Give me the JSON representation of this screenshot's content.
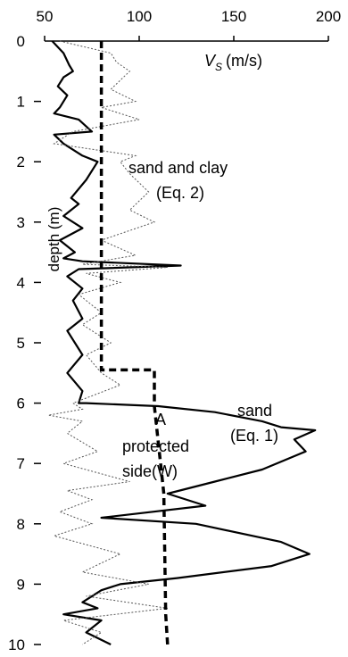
{
  "chart_data": {
    "type": "line",
    "xlabel": "V_S (m/s)",
    "xlabel_symbol": "V",
    "xlabel_subscript": "S",
    "xlabel_unit": "(m/s)",
    "ylabel": "depth (m)",
    "xlim": [
      50,
      200
    ],
    "ylim": [
      0,
      10
    ],
    "y_inverted": true,
    "x_axis_position": "top",
    "grid": false,
    "legend": "none",
    "xticks": [
      "50",
      "100",
      "150",
      "200"
    ],
    "xtick_values": [
      50,
      100,
      150,
      200
    ],
    "yticks": [
      "0",
      "1",
      "2",
      "3",
      "4",
      "5",
      "6",
      "7",
      "8",
      "9",
      "10"
    ],
    "ytick_values": [
      0,
      1,
      2,
      3,
      4,
      5,
      6,
      7,
      8,
      9,
      10
    ],
    "annotations": {
      "sand_and_clay_line1": "sand and clay",
      "sand_and_clay_line2": "(Eq. 2)",
      "sand_line1": "sand",
      "sand_line2": "(Eq. 1)",
      "point_A": "A",
      "protected_line1": "protected",
      "protected_line2": "side(W)"
    },
    "series": [
      {
        "style": "solid",
        "color": "#000000",
        "points": [
          [
            54,
            0.0
          ],
          [
            60,
            0.2
          ],
          [
            63,
            0.4
          ],
          [
            65,
            0.5
          ],
          [
            60,
            0.6
          ],
          [
            57,
            0.75
          ],
          [
            62,
            0.9
          ],
          [
            58,
            1.1
          ],
          [
            55,
            1.2
          ],
          [
            68,
            1.3
          ],
          [
            75,
            1.5
          ],
          [
            55,
            1.55
          ],
          [
            60,
            1.7
          ],
          [
            70,
            1.9
          ],
          [
            78,
            2.0
          ],
          [
            72,
            2.3
          ],
          [
            64,
            2.6
          ],
          [
            68,
            2.7
          ],
          [
            60,
            2.9
          ],
          [
            70,
            3.1
          ],
          [
            58,
            3.3
          ],
          [
            66,
            3.5
          ],
          [
            60,
            3.6
          ],
          [
            70,
            3.65
          ],
          [
            122,
            3.72
          ],
          [
            68,
            3.78
          ],
          [
            62,
            3.9
          ],
          [
            70,
            4.1
          ],
          [
            65,
            4.3
          ],
          [
            70,
            4.6
          ],
          [
            62,
            4.8
          ],
          [
            66,
            5.0
          ],
          [
            70,
            5.2
          ],
          [
            62,
            5.5
          ],
          [
            70,
            5.8
          ],
          [
            68,
            6.0
          ],
          [
            72,
            6.0
          ],
          [
            110,
            6.05
          ],
          [
            140,
            6.15
          ],
          [
            165,
            6.3
          ],
          [
            175,
            6.4
          ],
          [
            193,
            6.45
          ],
          [
            182,
            6.6
          ],
          [
            188,
            6.8
          ],
          [
            165,
            7.1
          ],
          [
            140,
            7.3
          ],
          [
            115,
            7.5
          ],
          [
            135,
            7.7
          ],
          [
            80,
            7.9
          ],
          [
            130,
            8.0
          ],
          [
            175,
            8.3
          ],
          [
            190,
            8.5
          ],
          [
            170,
            8.7
          ],
          [
            120,
            8.9
          ],
          [
            90,
            9.0
          ],
          [
            80,
            9.1
          ],
          [
            70,
            9.3
          ],
          [
            78,
            9.4
          ],
          [
            60,
            9.5
          ],
          [
            80,
            9.6
          ],
          [
            72,
            9.8
          ],
          [
            85,
            10.0
          ]
        ]
      },
      {
        "style": "dotted",
        "color": "#555555",
        "points": [
          [
            58,
            0.0
          ],
          [
            85,
            0.2
          ],
          [
            88,
            0.35
          ],
          [
            95,
            0.5
          ],
          [
            90,
            0.65
          ],
          [
            85,
            0.8
          ],
          [
            98,
            1.0
          ],
          [
            80,
            1.1
          ],
          [
            100,
            1.3
          ],
          [
            65,
            1.5
          ],
          [
            55,
            1.7
          ],
          [
            98,
            1.9
          ],
          [
            90,
            2.0
          ],
          [
            95,
            2.2
          ],
          [
            105,
            2.5
          ],
          [
            95,
            2.8
          ],
          [
            108,
            3.0
          ],
          [
            80,
            3.3
          ],
          [
            98,
            3.55
          ],
          [
            70,
            3.7
          ],
          [
            115,
            3.75
          ],
          [
            72,
            3.85
          ],
          [
            90,
            4.0
          ],
          [
            68,
            4.2
          ],
          [
            80,
            4.5
          ],
          [
            70,
            4.7
          ],
          [
            85,
            5.0
          ],
          [
            72,
            5.2
          ],
          [
            80,
            5.5
          ],
          [
            90,
            5.7
          ],
          [
            65,
            6.0
          ],
          [
            70,
            6.1
          ],
          [
            52,
            6.2
          ],
          [
            70,
            6.3
          ],
          [
            62,
            6.5
          ],
          [
            78,
            6.8
          ],
          [
            60,
            7.0
          ],
          [
            95,
            7.3
          ],
          [
            62,
            7.45
          ],
          [
            75,
            7.6
          ],
          [
            58,
            7.8
          ],
          [
            75,
            8.0
          ],
          [
            55,
            8.2
          ],
          [
            90,
            8.5
          ],
          [
            70,
            8.8
          ],
          [
            105,
            9.0
          ],
          [
            72,
            9.2
          ],
          [
            115,
            9.4
          ],
          [
            60,
            9.6
          ],
          [
            80,
            9.8
          ],
          [
            70,
            10.0
          ]
        ]
      },
      {
        "style": "dashed",
        "color": "#000000",
        "points": [
          [
            80,
            0.0
          ],
          [
            80,
            5.45
          ],
          [
            108,
            5.45
          ],
          [
            108,
            6.05
          ],
          [
            113,
            7.5
          ],
          [
            114,
            9.5
          ],
          [
            115,
            10.0
          ]
        ]
      }
    ]
  }
}
